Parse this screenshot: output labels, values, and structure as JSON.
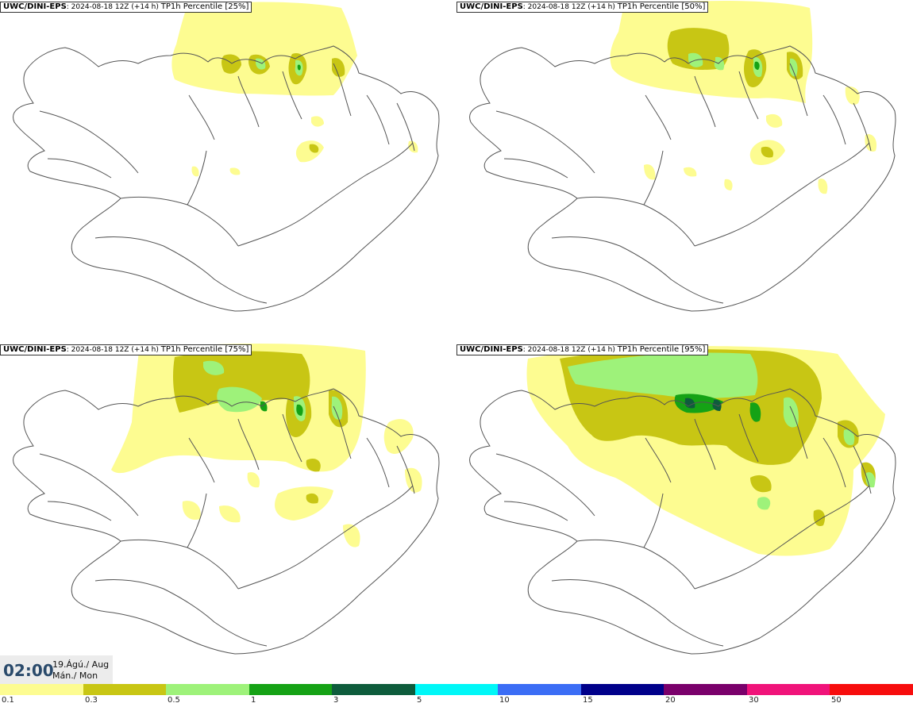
{
  "panels": [
    {
      "model": "UWC/DINI-EPS",
      "run": "2024-08-18 12Z (+14 h)",
      "title": "TP1h Percentile [25%]"
    },
    {
      "model": "UWC/DINI-EPS",
      "run": "2024-08-18 12Z (+14 h)",
      "title": "TP1h Percentile [50%]"
    },
    {
      "model": "UWC/DINI-EPS",
      "run": "2024-08-18 12Z (+14 h)",
      "title": "TP1h Percentile [75%]"
    },
    {
      "model": "UWC/DINI-EPS",
      "run": "2024-08-18 12Z (+14 h)",
      "title": "TP1h Percentile [95%]"
    }
  ],
  "time": {
    "clock": "02:00",
    "date_line1": "19.Ágú./ Aug",
    "date_line2": "Mán./ Mon"
  },
  "legend": {
    "thresholds": [
      "0.1",
      "0.3",
      "0.5",
      "1",
      "3",
      "5",
      "10",
      "15",
      "20",
      "30",
      "50"
    ],
    "colors": [
      "#fdfc91",
      "#c8c614",
      "#9ef27a",
      "#15a215",
      "#0e5c3c",
      "#00f7f7",
      "#3b6df5",
      "#00008a",
      "#7a006b",
      "#f0137a",
      "#f70d0d"
    ]
  },
  "icons": {
    "map": "iceland-map-icon"
  }
}
